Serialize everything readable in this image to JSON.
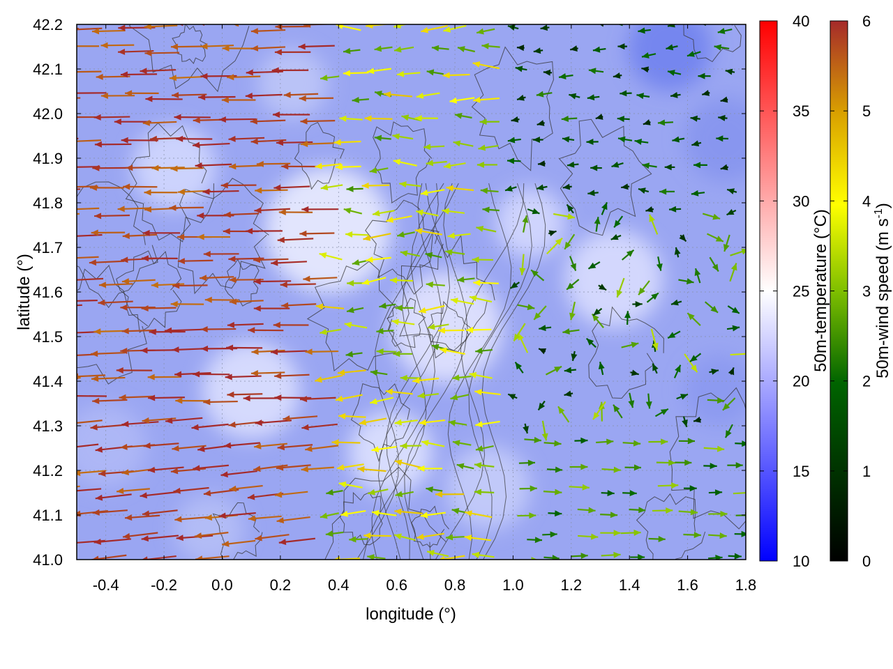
{
  "chart_data": {
    "type": "heatmap",
    "title": "",
    "xlabel": "longitude (°)",
    "ylabel": "latitude (°)",
    "xlim": [
      -0.5,
      1.8
    ],
    "ylim": [
      41.0,
      42.2
    ],
    "x_ticks": [
      "-0.4",
      "-0.2",
      "0.0",
      "0.2",
      "0.4",
      "0.6",
      "0.8",
      "1.0",
      "1.2",
      "1.4",
      "1.6",
      "1.8"
    ],
    "x_tick_values": [
      -0.4,
      -0.2,
      0.0,
      0.2,
      0.4,
      0.6,
      0.8,
      1.0,
      1.2,
      1.4,
      1.6,
      1.8
    ],
    "y_ticks": [
      "41.0",
      "41.1",
      "41.2",
      "41.3",
      "41.4",
      "41.5",
      "41.6",
      "41.7",
      "41.8",
      "41.9",
      "42.0",
      "42.1",
      "42.2"
    ],
    "y_tick_values": [
      41.0,
      41.1,
      41.2,
      41.3,
      41.4,
      41.5,
      41.6,
      41.7,
      41.8,
      41.9,
      42.0,
      42.1,
      42.2
    ],
    "grid": true,
    "colorbars": [
      {
        "label": "50m-temperature (°C)",
        "range": [
          10,
          40
        ],
        "ticks": [
          "10",
          "15",
          "20",
          "25",
          "30",
          "35",
          "40"
        ],
        "tick_values": [
          10,
          15,
          20,
          25,
          30,
          35,
          40
        ],
        "colors": [
          "#0000ff",
          "#ffffff",
          "#ff0000"
        ]
      },
      {
        "label_main": "50m-wind speed (m s",
        "label_sup": "-1",
        "label_end": ")",
        "range": [
          0,
          6
        ],
        "ticks": [
          "0",
          "1",
          "2",
          "3",
          "4",
          "5",
          "6"
        ],
        "tick_values": [
          0,
          1,
          2,
          3,
          4,
          5,
          6
        ],
        "colors": [
          "#000000",
          "#006400",
          "#7fbf00",
          "#ffff00",
          "#d9a000",
          "#a52a2a"
        ]
      }
    ],
    "wind_regions": [
      {
        "region": "west (lon -0.5 to 0.4)",
        "direction": "westward",
        "speed_m_s": 6
      },
      {
        "region": "central (lon 0.4 to 1.0)",
        "direction": "westward",
        "speed_m_s": 3.5
      },
      {
        "region": "east-south (lon 1.0 to 1.8, lat 41.0 to 41.3)",
        "direction": "eastward",
        "speed_m_s": 2.5
      },
      {
        "region": "east-north (lon 1.0 to 1.8, lat 41.8 to 42.2)",
        "direction": "westward",
        "speed_m_s": 1.5
      }
    ],
    "temperature_range_shown": [
      17,
      24
    ]
  }
}
